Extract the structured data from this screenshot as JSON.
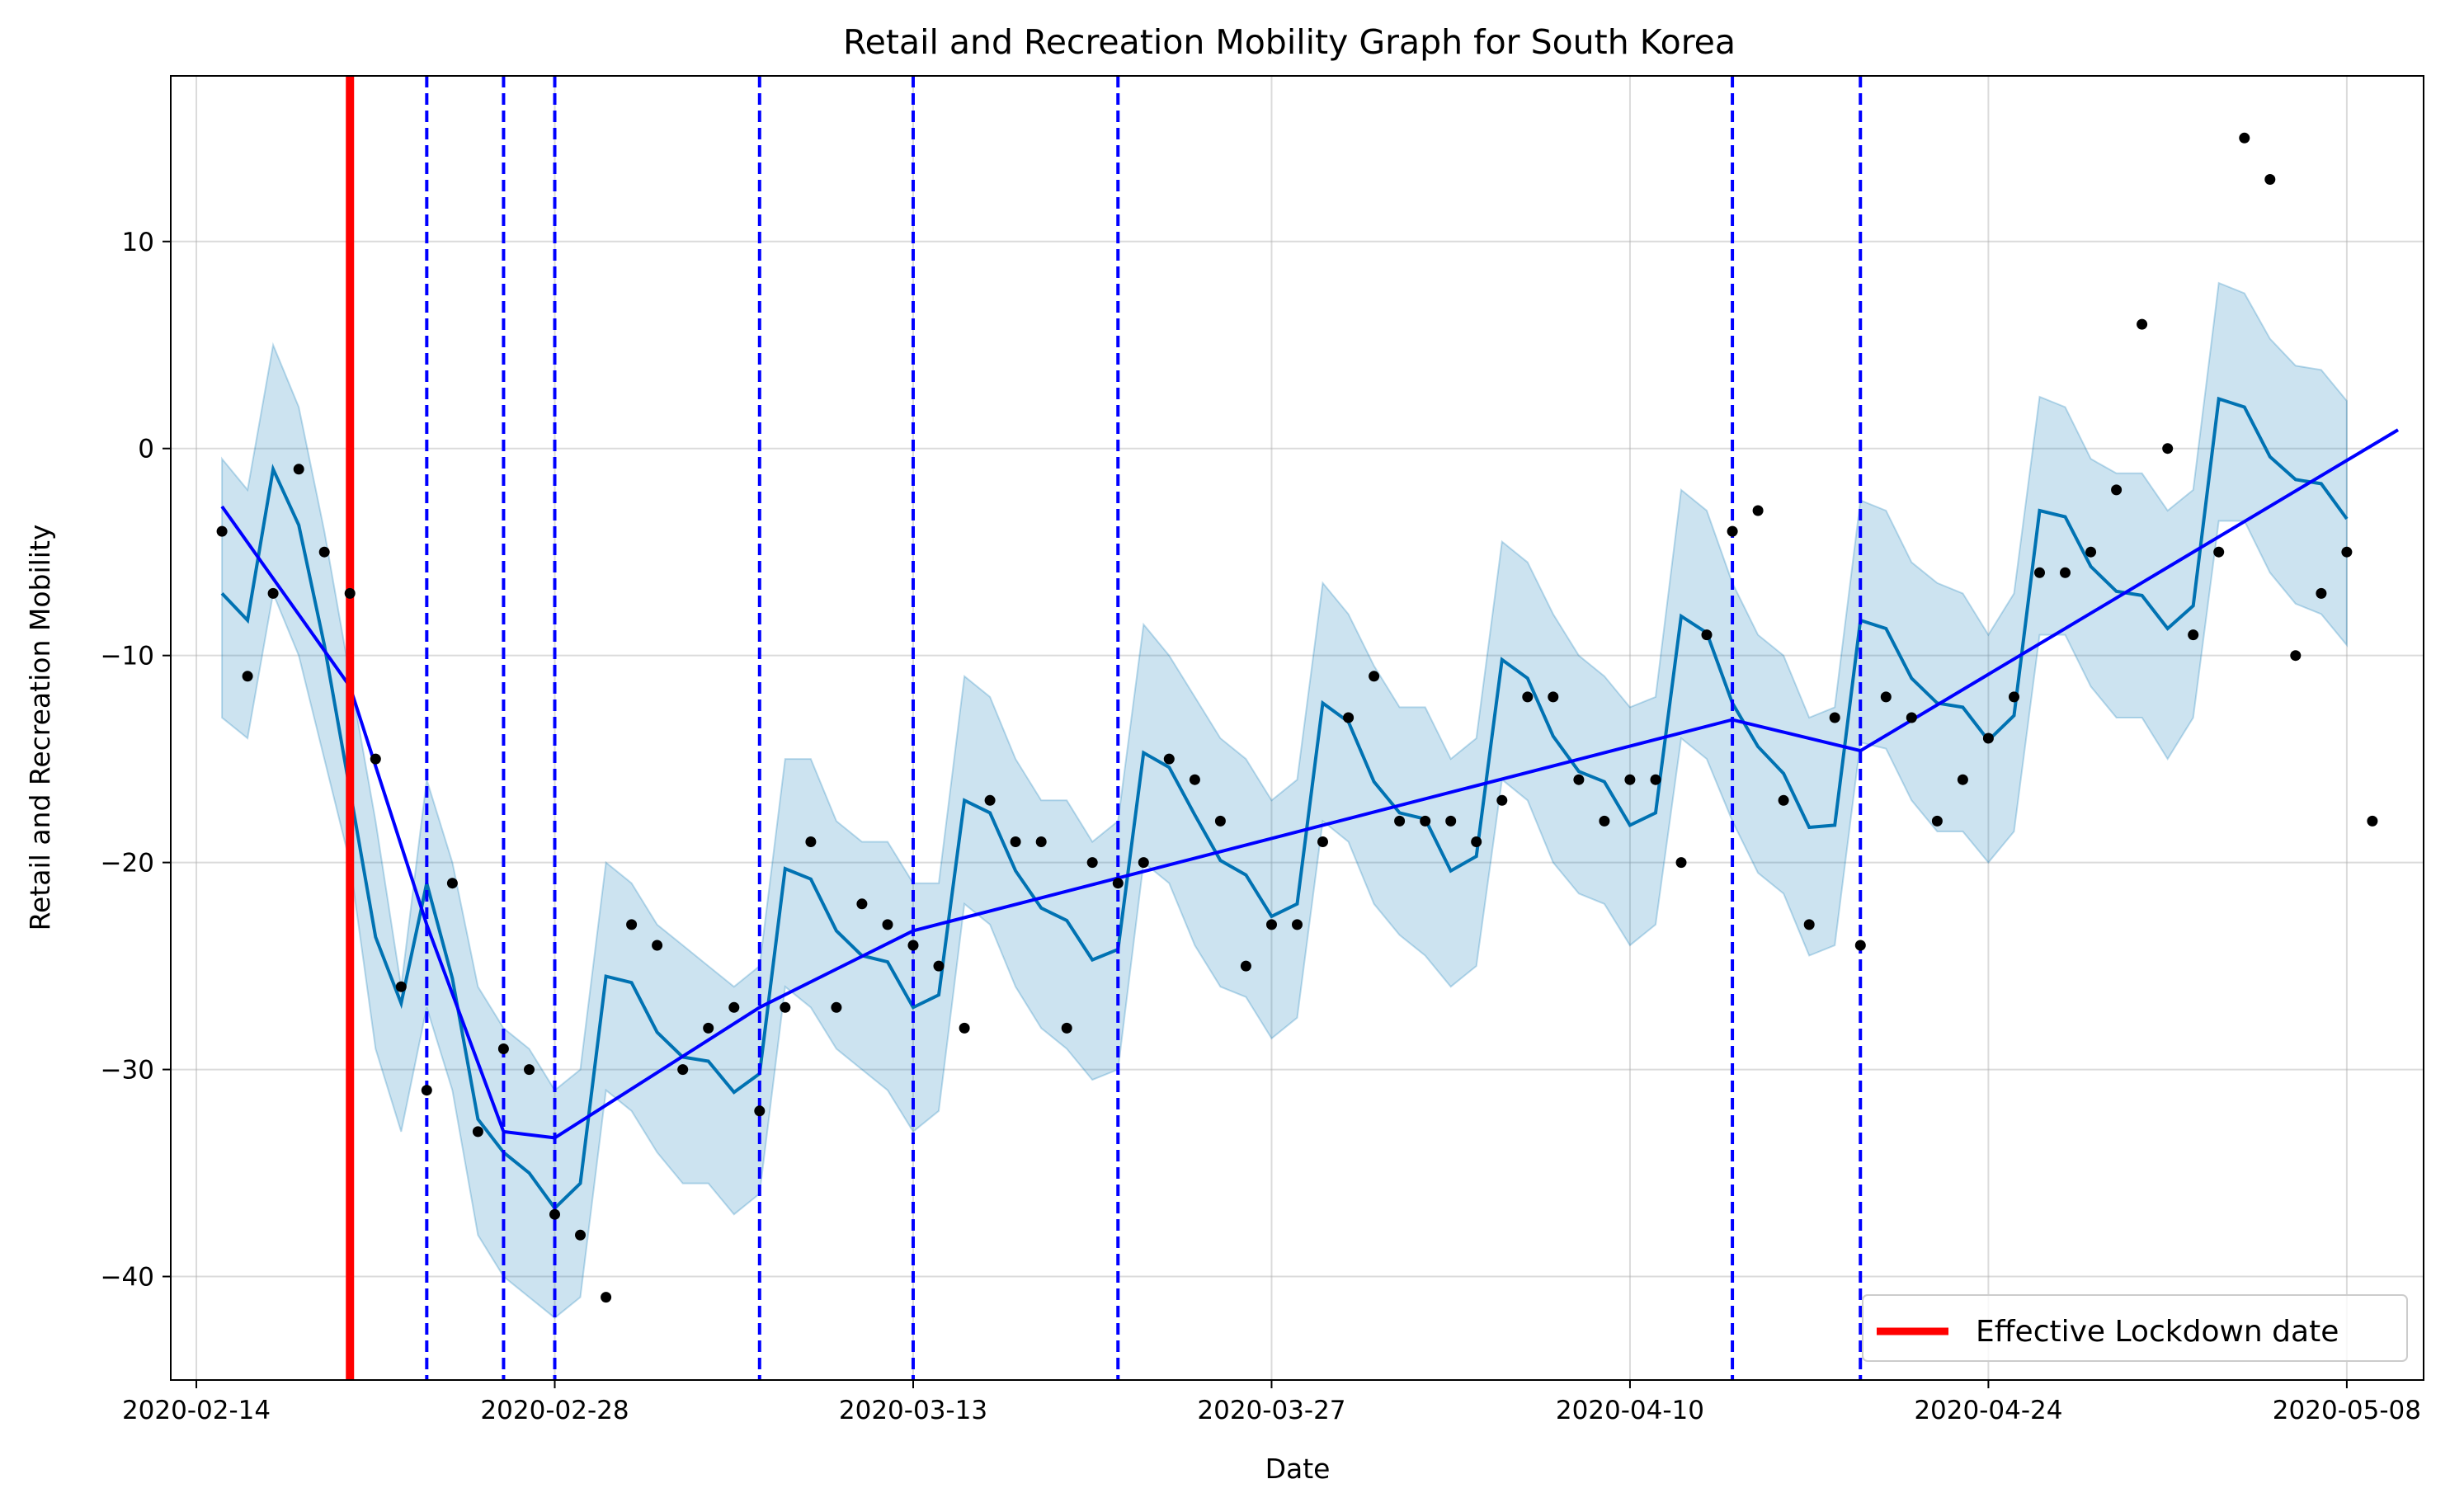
{
  "chart_data": {
    "type": "line",
    "title": "Retail and Recreation Mobility Graph for South Korea",
    "xlabel": "Date",
    "ylabel": "Retail and Recreation Mobility",
    "x_start": "2020-02-15",
    "x_end": "2020-05-10",
    "xlim": [
      "2020-02-13",
      "2020-05-11"
    ],
    "ylim": [
      -45,
      18
    ],
    "x_ticks": [
      "2020-02-14",
      "2020-02-28",
      "2020-03-13",
      "2020-03-27",
      "2020-04-10",
      "2020-04-24",
      "2020-05-08"
    ],
    "y_ticks": [
      -40,
      -30,
      -20,
      -10,
      0,
      10
    ],
    "grid": true,
    "legend": {
      "position": "bottom-right",
      "entries": [
        "Effective Lockdown date"
      ]
    },
    "lockdown_date": "2020-02-20",
    "changepoints": [
      "2020-02-23",
      "2020-02-26",
      "2020-02-28",
      "2020-03-07",
      "2020-03-13",
      "2020-03-21",
      "2020-04-14",
      "2020-04-19"
    ],
    "observed": [
      -4,
      -11,
      -7,
      -1,
      -5,
      -7,
      -15,
      -26,
      -31,
      -21,
      -33,
      -29,
      -30,
      -37,
      -38,
      -41,
      -23,
      -24,
      -30,
      -28,
      -27,
      -32,
      -27,
      -19,
      -27,
      -22,
      -23,
      -24,
      -25,
      -28,
      -17,
      -19,
      -19,
      -28,
      -20,
      -21,
      -20,
      -15,
      -16,
      -18,
      -25,
      -23,
      -23,
      -19,
      -13,
      -11,
      -18,
      -18,
      -18,
      -19,
      -17,
      -12,
      -12,
      -16,
      -18,
      -16,
      -16,
      -20,
      -9,
      -4,
      -3,
      -17,
      -23,
      -13,
      -24,
      -12,
      -13,
      -18,
      -16,
      -14,
      -12,
      -6,
      -6,
      -5,
      -2,
      6,
      0,
      -9,
      -5,
      15,
      13,
      -10,
      -7,
      -5,
      -18
    ],
    "forecast": [
      -7,
      -8.3,
      -1,
      -3.7,
      -9.5,
      -16.5,
      -23.6,
      -26.8,
      -21,
      -25.6,
      -32.4,
      -34,
      -35,
      -36.7,
      -35.5,
      -25.5,
      -25.8,
      -28.2,
      -29.4,
      -29.6,
      -31.1,
      -30.2,
      -20.3,
      -20.8,
      -23.3,
      -24.5,
      -24.8,
      -27,
      -26.4,
      -17,
      -17.6,
      -20.4,
      -22.2,
      -22.8,
      -24.7,
      -24.2,
      -14.7,
      -15.4,
      -17.7,
      -19.9,
      -20.6,
      -22.6,
      -22,
      -12.3,
      -13.2,
      -16.1,
      -17.6,
      -17.9,
      -20.4,
      -19.7,
      -10.2,
      -11.1,
      -13.9,
      -15.6,
      -16.1,
      -18.2,
      -17.6,
      -8.1,
      -8.9,
      -12.3,
      -14.4,
      -15.7,
      -18.3,
      -18.2,
      -8.3,
      -8.7,
      -11.1,
      -12.3,
      -12.5,
      -14.1,
      -12.9,
      -3,
      -3.3,
      -5.7,
      -6.9,
      -7.1,
      -8.7,
      -7.6,
      2.4,
      2,
      -0.4,
      -1.5,
      -1.7,
      -3.4
    ],
    "upper": [
      -0.5,
      -2,
      5,
      2,
      -4,
      -11,
      -18,
      -26,
      -16,
      -20,
      -26,
      -28,
      -29,
      -31,
      -30,
      -20,
      -21,
      -23,
      -24,
      -25,
      -26,
      -25,
      -15,
      -15,
      -18,
      -19,
      -19,
      -21,
      -21,
      -11,
      -12,
      -15,
      -17,
      -17,
      -19,
      -18,
      -8.5,
      -10,
      -12,
      -14,
      -15,
      -17,
      -16,
      -6.5,
      -8,
      -10.5,
      -12.5,
      -12.5,
      -15,
      -14,
      -4.5,
      -5.5,
      -8,
      -10,
      -11,
      -12.5,
      -12,
      -2,
      -3,
      -6.5,
      -9,
      -10,
      -13,
      -12.5,
      -2.5,
      -3,
      -5.5,
      -6.5,
      -7,
      -9,
      -7,
      2.5,
      2,
      -0.5,
      -1.2,
      -1.2,
      -3,
      -2,
      8,
      7.5,
      5.3,
      4,
      3.8,
      2.3
    ],
    "lower": [
      -13,
      -14,
      -7,
      -10,
      -15,
      -20,
      -29,
      -33,
      -27,
      -31,
      -38,
      -40,
      -41,
      -42,
      -41,
      -31,
      -32,
      -34,
      -35.5,
      -35.5,
      -37,
      -36,
      -26,
      -27,
      -29,
      -30,
      -31,
      -33,
      -32,
      -22,
      -23,
      -26,
      -28,
      -29,
      -30.5,
      -30,
      -20,
      -21,
      -24,
      -26,
      -26.5,
      -28.5,
      -27.5,
      -18,
      -19,
      -22,
      -23.5,
      -24.5,
      -26,
      -25,
      -16,
      -17,
      -20,
      -21.5,
      -22,
      -24,
      -23,
      -14,
      -15,
      -18,
      -20.5,
      -21.5,
      -24.5,
      -24,
      -14.2,
      -14.5,
      -17,
      -18.5,
      -18.5,
      -20,
      -18.5,
      -9,
      -9,
      -11.5,
      -13,
      -13,
      -15,
      -13,
      -3.5,
      -3.5,
      -6,
      -7.5,
      -8,
      -9.5
    ],
    "trend": {
      "dates": [
        "2020-02-15",
        "2020-02-20",
        "2020-02-23",
        "2020-02-26",
        "2020-02-28",
        "2020-03-07",
        "2020-03-13",
        "2020-04-14",
        "2020-04-19",
        "2020-05-10"
      ],
      "values": [
        -2.8,
        -11.5,
        -23,
        -33,
        -33.3,
        -27,
        -23.3,
        -13.1,
        -14.6,
        0.9
      ]
    },
    "colors": {
      "observed": "#000000",
      "forecast": "#0072B2",
      "band": "#0072B2",
      "trend": "#0000ff",
      "lockdown": "#ff0000",
      "changepoint": "#0000ff"
    }
  }
}
